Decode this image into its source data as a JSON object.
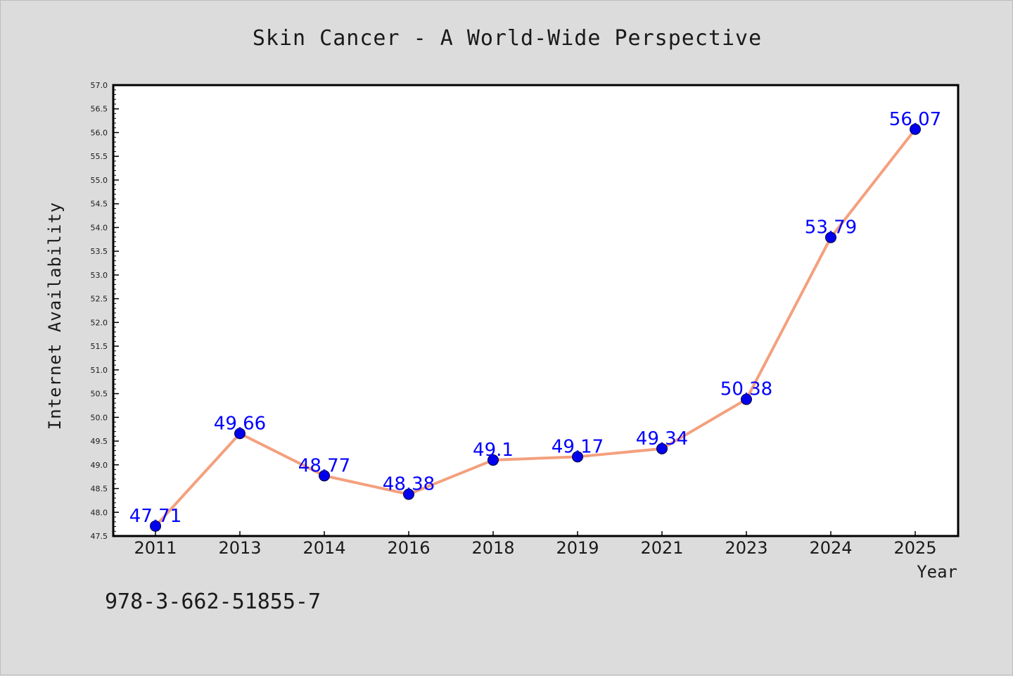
{
  "chart_data": {
    "type": "line",
    "title": "Skin Cancer - A World-Wide Perspective",
    "xlabel": "Year",
    "ylabel": "Internet Availability",
    "categories": [
      "2011",
      "2013",
      "2014",
      "2016",
      "2018",
      "2019",
      "2021",
      "2023",
      "2024",
      "2025"
    ],
    "series": [
      {
        "values": [
          47.71,
          49.66,
          48.77,
          48.38,
          49.1,
          49.17,
          49.34,
          50.38,
          53.79,
          56.07
        ],
        "labels": [
          "47.71",
          "49.66",
          "48.77",
          "48.38",
          "49.1",
          "49.17",
          "49.34",
          "50.38",
          "53.79",
          "56.07"
        ],
        "line_color": "#f4a07e",
        "marker_color": "#0000ee",
        "label_color": "#0000ff"
      }
    ],
    "ylim": [
      47.5,
      57.0
    ],
    "ytick_step": 0.5,
    "ytick_labels": [
      "47.5",
      "48.0",
      "48.5",
      "49.0",
      "49.5",
      "50.0",
      "50.5",
      "51.0",
      "51.5",
      "52.0",
      "52.5",
      "53.0",
      "53.5",
      "54.0",
      "54.5",
      "55.0",
      "55.5",
      "56.0",
      "56.5",
      "57.0"
    ],
    "grid": false,
    "legend": "none"
  },
  "footnote": "978-3-662-51855-7",
  "colors": {
    "background": "#dcdcdc",
    "plot_area": "#ffffff",
    "axis": "#000000",
    "text": "#1a1a1a"
  }
}
